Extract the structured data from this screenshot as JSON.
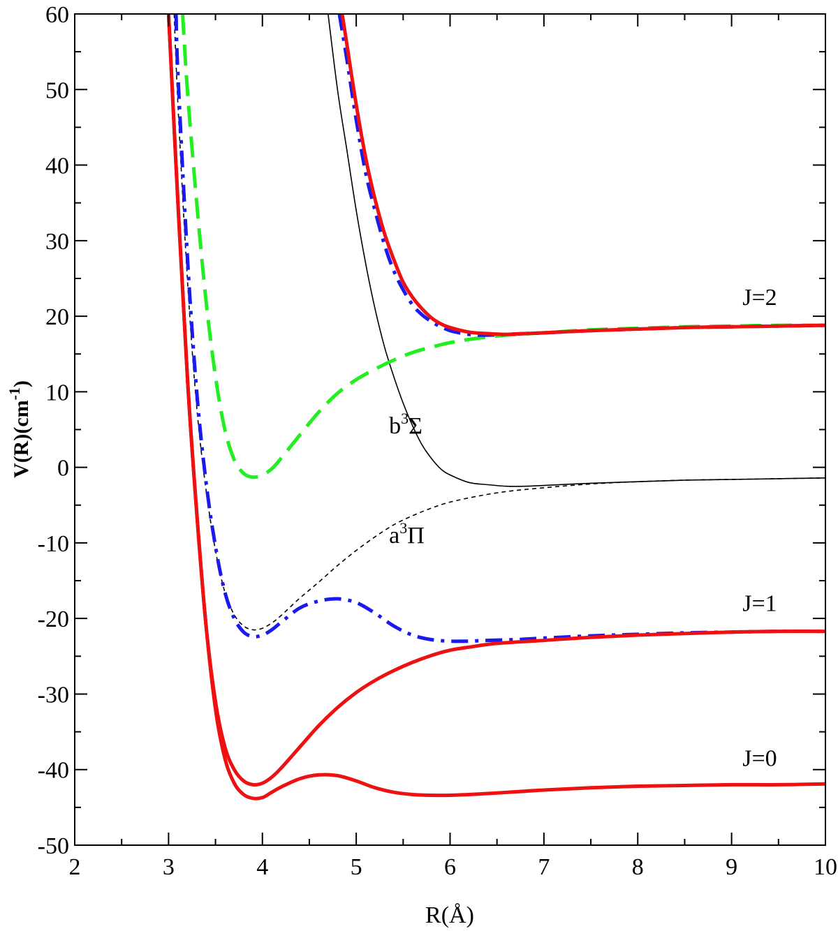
{
  "chart_data": {
    "type": "line",
    "title": "",
    "xlabel": "R(Å)",
    "ylabel": "V(R)(cm",
    "ylabel_sup": "-1",
    "ylabel_close": ")",
    "xlim": [
      2,
      10
    ],
    "ylim": [
      -50,
      60
    ],
    "xticks": [
      2,
      3,
      4,
      5,
      6,
      7,
      8,
      9,
      10
    ],
    "yticks": [
      -50,
      -40,
      -30,
      -20,
      -10,
      0,
      10,
      20,
      30,
      40,
      50,
      60
    ],
    "xtick_labels": [
      "2",
      "3",
      "4",
      "5",
      "6",
      "7",
      "8",
      "9",
      "10"
    ],
    "ytick_labels": [
      "-50",
      "-40",
      "-30",
      "-20",
      "-10",
      "0",
      "10",
      "20",
      "30",
      "40",
      "50",
      "60"
    ],
    "grid": false,
    "annotations": [
      {
        "id": "J2",
        "text": "J=2",
        "x": 9.3,
        "y": 21.5
      },
      {
        "id": "J1",
        "text": "J=1",
        "x": 9.3,
        "y": -19.0
      },
      {
        "id": "J0",
        "text": "J=0",
        "x": 9.3,
        "y": -39.5
      }
    ],
    "state_labels": [
      {
        "id": "b",
        "prefix": "b",
        "sup": "3",
        "suffix": "Σ",
        "x": 5.35,
        "y": 4.5
      },
      {
        "id": "a",
        "prefix": "a",
        "sup": "3",
        "suffix": "Π",
        "x": 5.35,
        "y": -10.0
      }
    ],
    "series": [
      {
        "name": "b3Sigma",
        "color": "#000000",
        "style": "solid",
        "width": 1.6,
        "x": [
          4.7,
          4.8,
          4.9,
          5.0,
          5.1,
          5.2,
          5.3,
          5.4,
          5.5,
          5.6,
          5.7,
          5.8,
          5.9,
          6.0,
          6.2,
          6.4,
          6.6,
          6.8,
          7.0,
          7.5,
          8.0,
          8.5,
          9.0,
          9.5,
          10.0
        ],
        "y": [
          60,
          50,
          42,
          34,
          27,
          21,
          16,
          12,
          8.5,
          5.5,
          3,
          1.2,
          -0.2,
          -1.0,
          -2.0,
          -2.3,
          -2.5,
          -2.5,
          -2.4,
          -2.1,
          -1.9,
          -1.7,
          -1.6,
          -1.5,
          -1.4
        ]
      },
      {
        "name": "a3Pi",
        "color": "#000000",
        "style": "dashed",
        "width": 1.6,
        "x": [
          3.06,
          3.1,
          3.2,
          3.3,
          3.4,
          3.5,
          3.6,
          3.7,
          3.8,
          3.9,
          4.0,
          4.1,
          4.2,
          4.4,
          4.6,
          4.8,
          5.0,
          5.2,
          5.4,
          5.6,
          5.8,
          6.0,
          6.3,
          6.6,
          7.0,
          7.5,
          8.0,
          8.5,
          9.0,
          9.5,
          10.0
        ],
        "y": [
          60,
          48,
          25,
          8,
          -3,
          -11,
          -16.5,
          -19.5,
          -21,
          -21.5,
          -21.3,
          -20.6,
          -19.6,
          -17.3,
          -15.2,
          -13,
          -11,
          -9.2,
          -7.6,
          -6.4,
          -5.4,
          -4.6,
          -3.8,
          -3.2,
          -2.7,
          -2.2,
          -1.9,
          -1.7,
          -1.6,
          -1.5,
          -1.4
        ]
      },
      {
        "name": "J=2 (green dashed)",
        "color": "#22ee22",
        "style": "longdash",
        "width": 5,
        "x": [
          3.15,
          3.2,
          3.3,
          3.4,
          3.5,
          3.6,
          3.7,
          3.8,
          3.9,
          4.0,
          4.1,
          4.2,
          4.4,
          4.6,
          4.8,
          5.0,
          5.2,
          5.4,
          5.6,
          5.8,
          6.0,
          6.3,
          6.6,
          7.0,
          7.5,
          8.0,
          8.5,
          9.0,
          9.5,
          10.0
        ],
        "y": [
          60,
          50,
          35,
          22,
          12,
          5,
          1,
          -0.8,
          -1.3,
          -1.0,
          -0.2,
          1.2,
          4.3,
          7.3,
          9.8,
          11.6,
          13,
          14.2,
          15.2,
          15.9,
          16.5,
          17.1,
          17.5,
          17.8,
          18.2,
          18.4,
          18.6,
          18.7,
          18.8,
          18.8
        ]
      },
      {
        "name": "J=2 (blue dash-dot)",
        "color": "#1a1aee",
        "style": "dashdot",
        "width": 5,
        "x": [
          4.82,
          4.9,
          5.0,
          5.1,
          5.2,
          5.3,
          5.4,
          5.5,
          5.6,
          5.7,
          5.8,
          5.9,
          6.0,
          6.1,
          6.2,
          6.3,
          6.4,
          6.6,
          6.8,
          7.0,
          7.5,
          8.0,
          8.5,
          9.0,
          9.5,
          10.0
        ],
        "y": [
          60,
          54,
          46,
          39,
          34,
          29.5,
          26,
          23.5,
          21.5,
          20.2,
          19.3,
          18.6,
          18.1,
          17.8,
          17.6,
          17.5,
          17.5,
          17.6,
          17.7,
          17.8,
          18.1,
          18.3,
          18.5,
          18.6,
          18.7,
          18.8
        ]
      },
      {
        "name": "J=2 (red)",
        "color": "#ee1111",
        "style": "solid",
        "width": 5,
        "x": [
          4.85,
          4.9,
          5.0,
          5.1,
          5.2,
          5.3,
          5.4,
          5.5,
          5.6,
          5.7,
          5.8,
          5.9,
          6.0,
          6.2,
          6.4,
          6.6,
          6.8,
          7.0,
          7.5,
          8.0,
          8.5,
          9.0,
          9.5,
          10.0
        ],
        "y": [
          60,
          56,
          48,
          41,
          35.5,
          31,
          27.5,
          24.5,
          22.5,
          21,
          19.8,
          19,
          18.5,
          17.9,
          17.7,
          17.6,
          17.7,
          17.8,
          18.1,
          18.3,
          18.5,
          18.6,
          18.7,
          18.8
        ]
      },
      {
        "name": "J=1 (blue dash-dot)",
        "color": "#1a1aee",
        "style": "dashdot",
        "width": 5,
        "x": [
          3.08,
          3.1,
          3.2,
          3.3,
          3.4,
          3.5,
          3.6,
          3.7,
          3.8,
          3.9,
          4.0,
          4.1,
          4.2,
          4.4,
          4.6,
          4.8,
          5.0,
          5.2,
          5.4,
          5.6,
          5.8,
          6.0,
          6.2,
          6.4,
          6.7,
          7.0,
          7.5,
          8.0,
          8.5,
          9.0,
          9.5,
          10.0
        ],
        "y": [
          60,
          52,
          28,
          10,
          -2,
          -10.5,
          -16.5,
          -20,
          -21.8,
          -22.4,
          -22.2,
          -21.5,
          -20.5,
          -18.6,
          -17.7,
          -17.4,
          -17.9,
          -19.3,
          -21,
          -22.2,
          -22.8,
          -23,
          -23,
          -22.9,
          -22.8,
          -22.6,
          -22.3,
          -22.1,
          -21.9,
          -21.8,
          -21.7,
          -21.7
        ]
      },
      {
        "name": "J=1 (red)",
        "color": "#ee1111",
        "style": "solid",
        "width": 5,
        "x": [
          3.0,
          3.1,
          3.2,
          3.3,
          3.4,
          3.5,
          3.6,
          3.7,
          3.8,
          3.9,
          4.0,
          4.1,
          4.2,
          4.4,
          4.6,
          4.8,
          5.0,
          5.2,
          5.4,
          5.6,
          5.8,
          6.0,
          6.2,
          6.5,
          7.0,
          7.5,
          8.0,
          8.5,
          9.0,
          9.5,
          10.0
        ],
        "y": [
          60,
          35,
          12,
          -6,
          -21,
          -31,
          -37,
          -40,
          -41.5,
          -42,
          -41.8,
          -41,
          -39.8,
          -37,
          -34.2,
          -31.8,
          -29.8,
          -28.2,
          -26.9,
          -25.8,
          -24.9,
          -24.2,
          -23.8,
          -23.3,
          -22.9,
          -22.5,
          -22.2,
          -22,
          -21.8,
          -21.7,
          -21.7
        ]
      },
      {
        "name": "J=0 (red)",
        "color": "#ee1111",
        "style": "solid",
        "width": 5,
        "x": [
          3.0,
          3.1,
          3.2,
          3.3,
          3.4,
          3.5,
          3.6,
          3.7,
          3.8,
          3.9,
          4.0,
          4.1,
          4.2,
          4.4,
          4.6,
          4.8,
          5.0,
          5.2,
          5.4,
          5.6,
          5.8,
          6.0,
          6.2,
          6.5,
          7.0,
          7.5,
          8.0,
          8.5,
          9.0,
          9.5,
          10.0
        ],
        "y": [
          60,
          35,
          12,
          -6,
          -21,
          -32,
          -38.5,
          -41.8,
          -43.3,
          -43.8,
          -43.7,
          -43,
          -42.3,
          -41.2,
          -40.7,
          -40.8,
          -41.5,
          -42.4,
          -43,
          -43.3,
          -43.4,
          -43.4,
          -43.3,
          -43.1,
          -42.7,
          -42.4,
          -42.2,
          -42.1,
          -42,
          -42,
          -41.9
        ]
      }
    ]
  }
}
